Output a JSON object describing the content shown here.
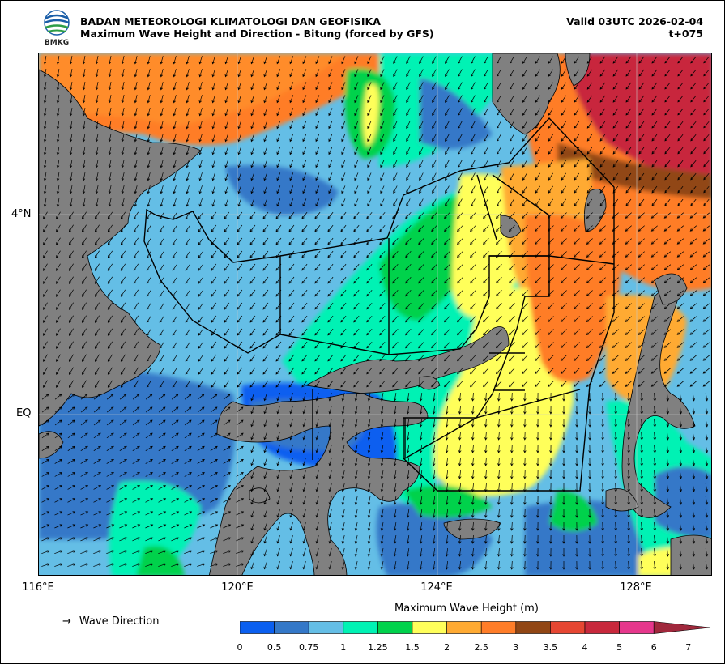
{
  "header": {
    "agency": "BADAN METEOROLOGI KLIMATOLOGI DAN GEOFISIKA",
    "product": "Maximum Wave Height and Direction - Bitung (forced by GFS)",
    "valid": "Valid 03UTC 2026-02-04",
    "lead": "t+075",
    "logo_text": "BMKG"
  },
  "axes": {
    "lat_labels": [
      "4°N",
      "EQ"
    ],
    "lon_labels": [
      "116°E",
      "120°E",
      "124°E",
      "128°E"
    ]
  },
  "legend": {
    "arrow_glyph": "→",
    "wave_direction_label": "Wave Direction",
    "colorbar_title": "Maximum Wave Height (m)",
    "ticks": [
      "0",
      "0.5",
      "0.75",
      "1",
      "1.25",
      "1.5",
      "2",
      "2.5",
      "3",
      "3.5",
      "4",
      "5",
      "6",
      "7"
    ],
    "colors": [
      "#0a5ff0",
      "#3478c8",
      "#64bee6",
      "#00f2b4",
      "#00d24c",
      "#ffff5a",
      "#ffaa32",
      "#ff7d28",
      "#914614",
      "#e64632",
      "#c8283c",
      "#e6378c",
      "#a0283c"
    ]
  },
  "map_colors": {
    "land": "#808080",
    "grid": "#c8c8c8",
    "boundary": "#000000",
    "arrow": "#000000"
  }
}
